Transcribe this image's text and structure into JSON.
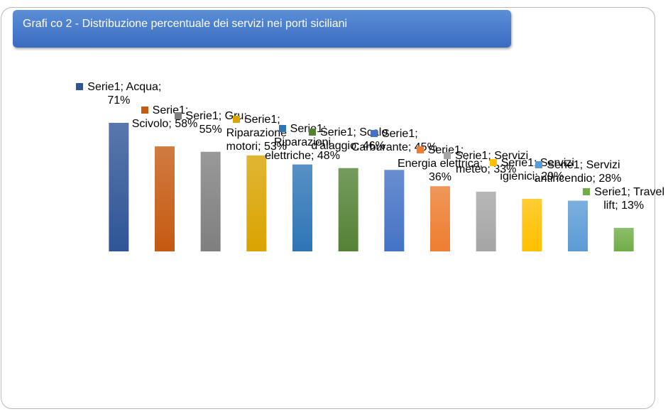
{
  "chart_data": {
    "type": "bar",
    "title": "Grafi co 2 - Distribuzione percentuale dei servizi nei porti siciliani",
    "series_name": "Serie1",
    "categories": [
      "Acqua",
      "Scivolo",
      "Gru",
      "Riparazione motori",
      "Riparazioni elettriche",
      "Scalo d'alaggio",
      "Carburante",
      "Energia elettrica",
      "Servizi meteo",
      "Servizi igienici",
      "Servizi antincendio",
      "Travel lift"
    ],
    "values": [
      71,
      58,
      55,
      53,
      48,
      46,
      45,
      36,
      33,
      29,
      28,
      13
    ],
    "value_labels": [
      "Serie1; Acqua; 71%",
      "Serie1; Scivolo; 58%",
      "Serie1; Gru; 55%",
      "Serie1; Riparazione motori; 53%",
      "Serie1; Riparazioni elettriche; 48%",
      "Serie1; Scalo d'alaggio; 46%",
      "Serie1; Carburante; 45%",
      "Serie1; Energia elettrica; 36%",
      "Serie1; Servizi meteo; 33%",
      "Serie1; Servizi igienici; 29%",
      "Serie1; Servizi antincendio; 28%",
      "Serie1; Travel lift; 13%"
    ],
    "colors": [
      "#2f5597",
      "#c55a11",
      "#7f7f7f",
      "#d9a300",
      "#2e75b6",
      "#548235",
      "#4472c4",
      "#ed7d31",
      "#a5a5a5",
      "#ffc000",
      "#5b9bd5",
      "#70ad47"
    ],
    "ylim": [
      0,
      80
    ]
  }
}
